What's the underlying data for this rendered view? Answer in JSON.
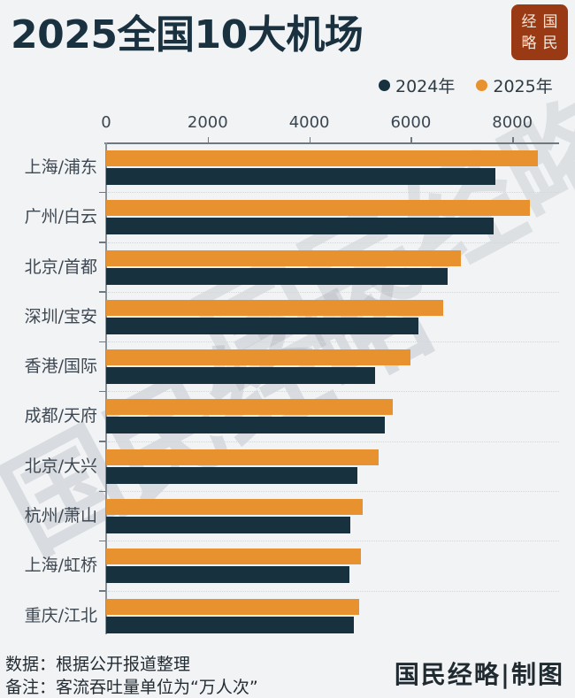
{
  "title": "2025全国10大机场",
  "logo": {
    "chars": [
      "经",
      "国",
      "略",
      "民"
    ]
  },
  "legend": [
    {
      "label": "2024年",
      "color": "#17313f"
    },
    {
      "label": "2025年",
      "color": "#e8912f"
    }
  ],
  "axis": {
    "ticks": [
      "0",
      "2000",
      "4000",
      "6000",
      "8000"
    ],
    "tick_values": [
      0,
      2000,
      4000,
      6000,
      8000
    ]
  },
  "footer": {
    "source": "数据：根据公开报道整理",
    "note": "备注：客流吞吐量单位为“万人次”",
    "credit": "国民经略|制图"
  },
  "watermark": "国民经略",
  "chart_data": {
    "type": "bar",
    "orientation": "horizontal",
    "title": "2025全国10大机场",
    "xlabel": "",
    "ylabel": "",
    "unit": "万人次",
    "xlim": [
      0,
      8800
    ],
    "x_ticks": [
      0,
      2000,
      4000,
      6000,
      8000
    ],
    "grid": false,
    "legend_position": "top-right",
    "categories": [
      "上海/浦东",
      "广州/白云",
      "北京/首都",
      "深圳/宝安",
      "香港/国际",
      "成都/天府",
      "北京/大兴",
      "杭州/萧山",
      "上海/虹桥",
      "重庆/江北"
    ],
    "series": [
      {
        "name": "2024年",
        "color": "#17313f",
        "values": [
          7670,
          7630,
          6730,
          6150,
          5300,
          5490,
          4940,
          4800,
          4790,
          4870
        ]
      },
      {
        "name": "2025年",
        "color": "#e8912f",
        "values": [
          8500,
          8340,
          6990,
          6630,
          5990,
          5650,
          5370,
          5050,
          5010,
          4990
        ]
      }
    ]
  }
}
